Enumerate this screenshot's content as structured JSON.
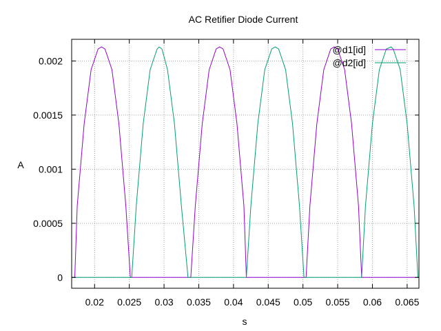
{
  "chart_data": {
    "type": "line",
    "title": "AC Retifier Diode Current",
    "xlabel": "s",
    "ylabel": "A",
    "xlim": [
      0.0167,
      0.0667
    ],
    "ylim": [
      -0.0001,
      0.0022
    ],
    "x_ticks": [
      0.02,
      0.025,
      0.03,
      0.035,
      0.04,
      0.045,
      0.05,
      0.055,
      0.06,
      0.065
    ],
    "x_tick_labels": [
      "0.02",
      "0.025",
      "0.03",
      "0.035",
      "0.04",
      "0.045",
      "0.05",
      "0.055",
      "0.06",
      "0.065"
    ],
    "y_ticks": [
      0,
      0.0005,
      0.001,
      0.0015,
      0.002
    ],
    "y_tick_labels": [
      "0",
      "0.0005",
      "0.001",
      "0.0015",
      "0.002"
    ],
    "grid": true,
    "legend_position": "top-right",
    "series": [
      {
        "name": "@d1[id]",
        "color": "#9400d3",
        "x": [
          0.0167,
          0.01715,
          0.0175,
          0.0185,
          0.0195,
          0.0205,
          0.021,
          0.0215,
          0.0225,
          0.0235,
          0.0245,
          0.02515,
          0.0255,
          0.0335,
          0.03385,
          0.0345,
          0.0355,
          0.0365,
          0.0375,
          0.038,
          0.0385,
          0.0395,
          0.0405,
          0.0415,
          0.04185,
          0.042,
          0.05,
          0.05045,
          0.051,
          0.052,
          0.053,
          0.054,
          0.0545,
          0.055,
          0.056,
          0.057,
          0.058,
          0.05845,
          0.059,
          0.0667
        ],
        "y": [
          0,
          0,
          0.00066,
          0.00142,
          0.00192,
          0.00211,
          0.00213,
          0.00211,
          0.00192,
          0.00142,
          0.00066,
          0,
          0,
          0,
          0,
          0.00066,
          0.00142,
          0.00192,
          0.00211,
          0.00213,
          0.00211,
          0.00192,
          0.00142,
          0.00066,
          0,
          0,
          0,
          0,
          0.00066,
          0.00142,
          0.00192,
          0.00211,
          0.00213,
          0.00211,
          0.00192,
          0.00142,
          0.00066,
          0,
          0,
          0
        ]
      },
      {
        "name": "@d2[id]",
        "color": "#009e73",
        "x": [
          0.0167,
          0.025,
          0.02535,
          0.026,
          0.027,
          0.028,
          0.029,
          0.0293,
          0.0297,
          0.0305,
          0.0315,
          0.0325,
          0.03345,
          0.034,
          0.0418,
          0.04185,
          0.0425,
          0.0435,
          0.0445,
          0.0455,
          0.046,
          0.0465,
          0.0475,
          0.0485,
          0.0495,
          0.05015,
          0.0505,
          0.0584,
          0.05845,
          0.059,
          0.06,
          0.061,
          0.062,
          0.0627,
          0.063,
          0.064,
          0.065,
          0.066,
          0.06655,
          0.0667
        ],
        "y": [
          0,
          0,
          0,
          0.00066,
          0.00142,
          0.00192,
          0.00211,
          0.00213,
          0.00211,
          0.00192,
          0.00142,
          0.00066,
          0,
          0,
          0,
          0,
          0.00066,
          0.00142,
          0.00192,
          0.00211,
          0.00213,
          0.00211,
          0.00192,
          0.00142,
          0.00066,
          0,
          0,
          0,
          0,
          0.00066,
          0.00142,
          0.00192,
          0.00211,
          0.00213,
          0.00211,
          0.00192,
          0.00142,
          0.00066,
          0,
          0
        ]
      }
    ]
  }
}
